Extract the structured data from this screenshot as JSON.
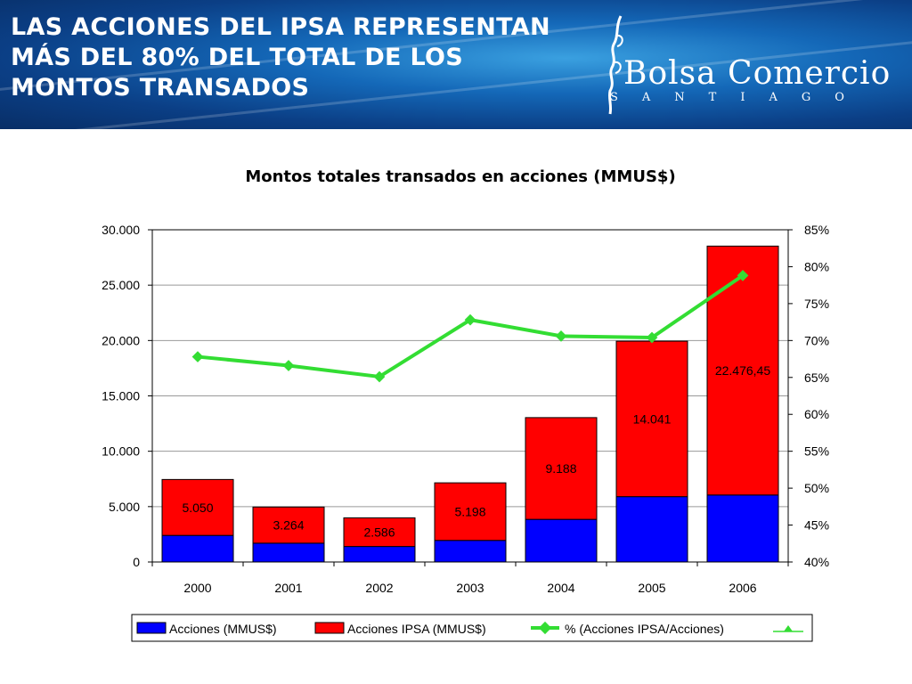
{
  "header": {
    "title": "LAS ACCIONES DEL IPSA REPRESENTAN MÁS DEL 80% DEL TOTAL DE LOS MONTOS TRANSADOS",
    "logo_name": "Bolsa Comercio",
    "logo_sub": "SANTIAGO"
  },
  "colors": {
    "acciones": "#0000ff",
    "ipsa": "#ff0000",
    "pct_line": "#33dd33",
    "banner": "#0b3f86"
  },
  "chart_data": {
    "type": "bar",
    "title": "Montos totales transados en acciones (MMUS$)",
    "categories": [
      "2000",
      "2001",
      "2002",
      "2003",
      "2004",
      "2005",
      "2006"
    ],
    "series": [
      {
        "name": "Acciones (MMUS$)",
        "kind": "bar-stacked",
        "values": [
          2400,
          1700,
          1400,
          1950,
          3850,
          5900,
          6050
        ]
      },
      {
        "name": "Acciones IPSA (MMUS$)",
        "kind": "bar-stacked",
        "values": [
          5050,
          3264,
          2586,
          5198,
          9188,
          14041,
          22476.45
        ],
        "labels": [
          "5.050",
          "3.264",
          "2.586",
          "5.198",
          "9.188",
          "14.041",
          "22.476,45"
        ]
      },
      {
        "name": "% (Acciones IPSA/Acciones)",
        "kind": "line",
        "axis": "right",
        "values": [
          67.8,
          66.6,
          65.1,
          72.8,
          70.6,
          70.4,
          78.8
        ]
      }
    ],
    "y_left": {
      "min": 0,
      "max": 30000,
      "ticks": [
        0,
        5000,
        10000,
        15000,
        20000,
        25000,
        30000
      ],
      "tick_labels": [
        "0",
        "5.000",
        "10.000",
        "15.000",
        "20.000",
        "25.000",
        "30.000"
      ]
    },
    "y_right": {
      "min": 40,
      "max": 85,
      "ticks": [
        40,
        45,
        50,
        55,
        60,
        65,
        70,
        75,
        80,
        85
      ],
      "tick_labels": [
        "40%",
        "45%",
        "50%",
        "55%",
        "60%",
        "65%",
        "70%",
        "75%",
        "80%",
        "85%"
      ]
    },
    "grid": true,
    "legend_position": "bottom"
  }
}
